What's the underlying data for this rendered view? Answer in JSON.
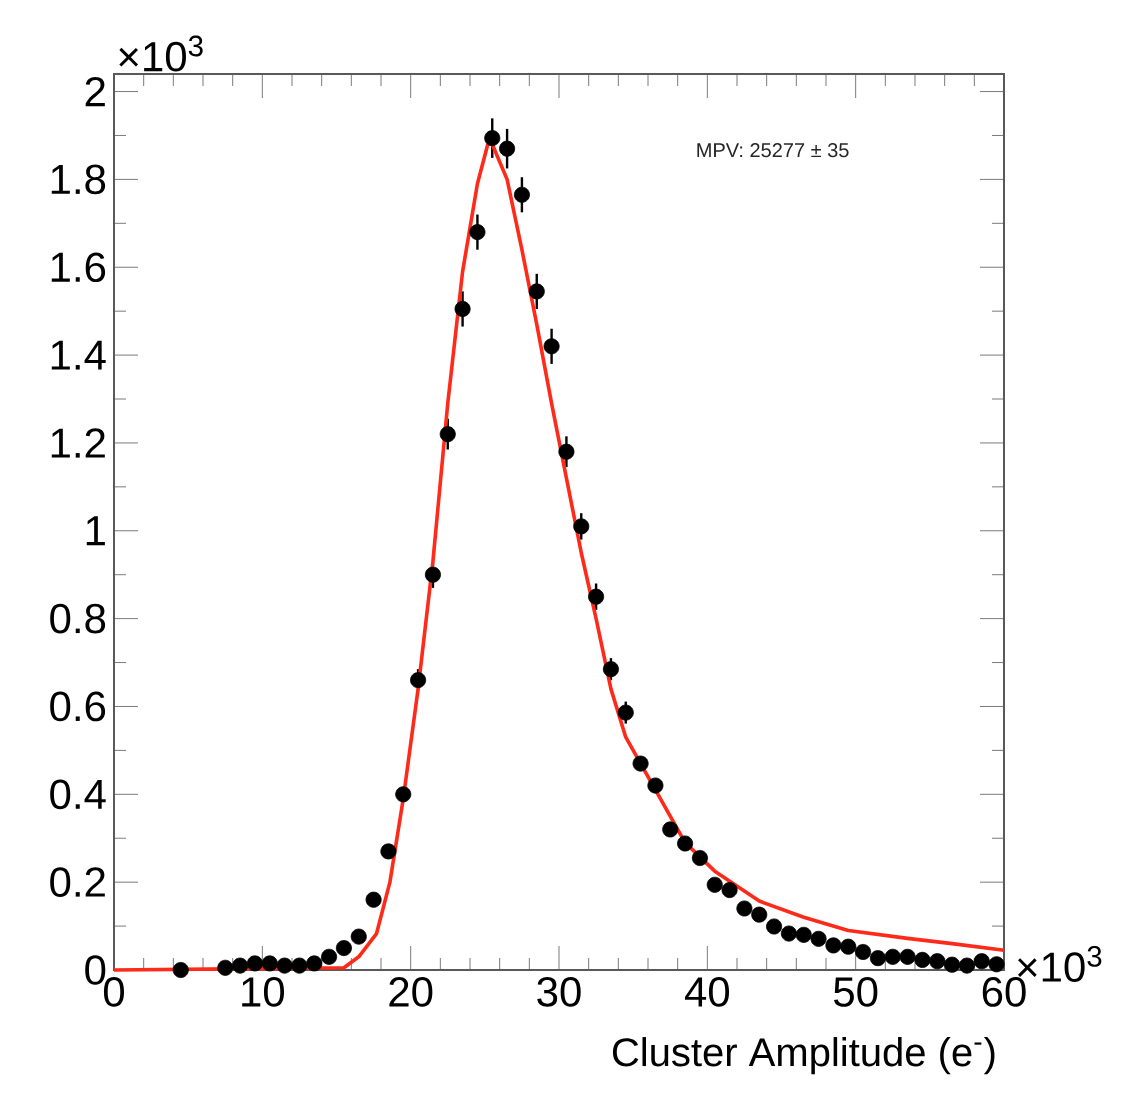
{
  "chart_data": {
    "type": "scatter",
    "xlabel": "Cluster Amplitude (e$^{-}$)",
    "annotations": [
      "MPV: 25277 ± 35",
      "×10$^{3}$",
      "×10$^{3}$"
    ],
    "xlim": [
      0,
      60
    ],
    "xticks": [
      0,
      10,
      20,
      30,
      40,
      50,
      60
    ],
    "ylim": [
      0,
      2.04
    ],
    "yticks": [
      0,
      0.2,
      0.4,
      0.6,
      0.8,
      1,
      1.2,
      1.4,
      1.6,
      1.8,
      2
    ],
    "grid": false,
    "series": [
      {
        "color": "#000000",
        "marker": "circle",
        "x": [
          4.5,
          7.5,
          8.5,
          9.5,
          10.5,
          11.5,
          12.5,
          13.5,
          14.5,
          15.5,
          16.5,
          17.5,
          18.5,
          19.5,
          20.5,
          21.5,
          22.5,
          23.5,
          24.5,
          25.5,
          26.5,
          27.5,
          28.5,
          29.5,
          30.5,
          31.5,
          32.5,
          33.5,
          34.5,
          35.5,
          36.5,
          37.5,
          38.5,
          39.5,
          40.5,
          41.5,
          42.5,
          43.5,
          44.5,
          45.5,
          46.5,
          47.5,
          48.5,
          49.5,
          50.5,
          51.5,
          52.5,
          53.5,
          54.5,
          55.5,
          56.5,
          57.5,
          58.5,
          59.5
        ],
        "values": [
          0.0,
          0.005,
          0.01,
          0.015,
          0.015,
          0.01,
          0.01,
          0.015,
          0.03,
          0.05,
          0.076,
          0.16,
          0.27,
          0.4,
          0.66,
          0.9,
          1.22,
          1.505,
          1.68,
          1.894,
          1.87,
          1.765,
          1.545,
          1.42,
          1.18,
          1.01,
          0.85,
          0.685,
          0.586,
          0.47,
          0.42,
          0.32,
          0.288,
          0.255,
          0.194,
          0.182,
          0.14,
          0.126,
          0.099,
          0.083,
          0.08,
          0.071,
          0.056,
          0.053,
          0.041,
          0.027,
          0.03,
          0.03,
          0.023,
          0.02,
          0.012,
          0.01,
          0.02,
          0.013
        ],
        "errors": [
          null,
          null,
          null,
          null,
          null,
          null,
          null,
          null,
          null,
          null,
          null,
          null,
          null,
          null,
          0.025,
          0.03,
          0.035,
          0.04,
          0.04,
          0.045,
          0.045,
          0.04,
          0.04,
          0.04,
          0.035,
          0.03,
          0.03,
          0.025,
          0.025,
          null,
          null,
          null,
          null,
          null,
          null,
          null,
          null,
          null,
          null,
          null,
          null,
          null,
          null,
          null,
          null,
          null,
          null,
          null,
          null,
          null,
          null,
          null,
          null,
          null
        ]
      },
      {
        "type": "line",
        "color": "#ff2a1a",
        "marker": "none",
        "x": [
          0,
          15.5,
          16.5,
          17.7,
          18.6,
          19.5,
          20.5,
          21.5,
          22.5,
          23.5,
          24.5,
          25.2,
          25.5,
          26.5,
          27.5,
          28.5,
          29.5,
          30.5,
          31.5,
          32.5,
          33.5,
          34.5,
          36.5,
          38.5,
          40.5,
          43.5,
          46.5,
          49.5,
          53.5,
          56.5,
          60
        ],
        "values": [
          0,
          0.005,
          0.03,
          0.083,
          0.2,
          0.39,
          0.64,
          0.93,
          1.29,
          1.59,
          1.79,
          1.88,
          1.88,
          1.8,
          1.64,
          1.47,
          1.29,
          1.12,
          0.95,
          0.8,
          0.64,
          0.53,
          0.41,
          0.29,
          0.225,
          0.157,
          0.12,
          0.09,
          0.072,
          0.06,
          0.045
        ]
      }
    ]
  }
}
